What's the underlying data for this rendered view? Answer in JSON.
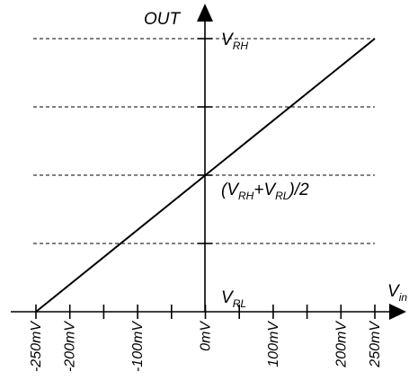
{
  "chart_data": {
    "type": "line",
    "title": "",
    "ylabel": "OUT",
    "xlabel": {
      "main": "V",
      "sub": "in"
    },
    "xlim": [
      -250,
      250
    ],
    "x_ticks": [
      -250,
      -200,
      -150,
      -100,
      -50,
      0,
      50,
      100,
      150,
      200,
      250
    ],
    "x_tick_labels": [
      {
        "x": -250,
        "text": "-250mV"
      },
      {
        "x": -200,
        "text": "-200mV"
      },
      {
        "x": -100,
        "text": "-100mV"
      },
      {
        "x": 0,
        "text": "0mV"
      },
      {
        "x": 100,
        "text": "100mV"
      },
      {
        "x": 200,
        "text": "200mV"
      },
      {
        "x": 250,
        "text": "250mV"
      }
    ],
    "y_levels": [
      {
        "y": 0,
        "label_main": "V",
        "label_sub": "RL"
      },
      {
        "y": 0.25
      },
      {
        "y": 0.5,
        "label_main": "(V",
        "label_sub": "RH",
        "label_plus": "+V",
        "label_sub2": "RL",
        "label_tail": ")/2"
      },
      {
        "y": 0.75
      },
      {
        "y": 1,
        "label_main": "V",
        "label_sub": "RH"
      }
    ],
    "series": [
      {
        "x": [
          -250,
          250
        ],
        "y": [
          0,
          1
        ]
      }
    ],
    "grid": "dashed horizontal at y levels",
    "colors": {
      "line": "#000000",
      "grid": "#000000"
    }
  }
}
